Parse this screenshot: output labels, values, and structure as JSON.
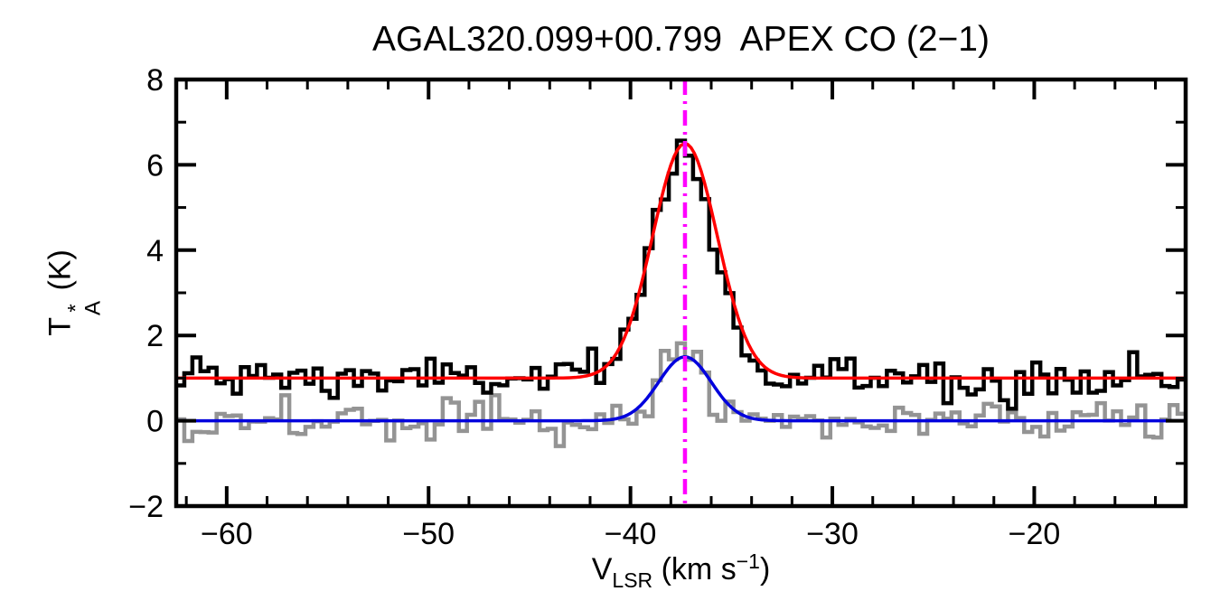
{
  "title": "AGAL320.099+00.799  APEX CO (2−1)",
  "labels": {
    "x": {
      "base": "V",
      "sub": "LSR",
      "mid": " (km s",
      "sup": "−1",
      "end": ")"
    },
    "y": {
      "base": "T",
      "sup": "*",
      "sub": "A",
      "unit": " (K)"
    }
  },
  "chart_data": {
    "type": "line",
    "title": "AGAL320.099+00.799  APEX CO (2−1)",
    "xlabel": "V_LSR (km s^-1)",
    "ylabel": "T_A^* (K)",
    "xlim": [
      -62.5,
      -12.5
    ],
    "ylim": [
      -2,
      8
    ],
    "grid": false,
    "x_major_ticks": [
      -60,
      -50,
      -40,
      -30,
      -20
    ],
    "x_tick_labels": [
      "−60",
      "−50",
      "−40",
      "−30",
      "−20"
    ],
    "x_minor_step": 2,
    "y_major_ticks": [
      -2,
      0,
      2,
      4,
      6,
      8
    ],
    "y_tick_labels": [
      "−2",
      "0",
      "2",
      "4",
      "6",
      "8"
    ],
    "y_minor_step": 1,
    "vline": {
      "x": -37.3,
      "color": "#ff00ff",
      "style": "dash-dot"
    },
    "series": [
      {
        "name": "secondary-spectrum-gray",
        "type": "histogram",
        "color": "#949494",
        "linewidth": 4.5,
        "baseline": 0.0,
        "noise_sigma": 0.24,
        "bin_width": 0.4,
        "seed": 987,
        "gaussian": {
          "amplitude": 1.6,
          "center": -37.35,
          "sigma": 1.2
        }
      },
      {
        "name": "observed-spectrum-black",
        "type": "histogram",
        "color": "#000000",
        "linewidth": 4.5,
        "baseline": 1.0,
        "noise_sigma": 0.26,
        "bin_width": 0.4,
        "seed": 1234,
        "gaussian": {
          "amplitude": 5.4,
          "center": -37.35,
          "sigma": 1.5
        }
      },
      {
        "name": "gaussian-fit-blue",
        "type": "gaussian",
        "color": "#0000dd",
        "linewidth": 3.5,
        "baseline": 0.0,
        "amplitude": 1.5,
        "center": -37.3,
        "sigma": 1.3
      },
      {
        "name": "gaussian-fit-red",
        "type": "gaussian",
        "color": "#ff0000",
        "linewidth": 3.5,
        "baseline": 1.0,
        "amplitude": 5.5,
        "center": -37.3,
        "sigma": 1.6
      }
    ]
  }
}
